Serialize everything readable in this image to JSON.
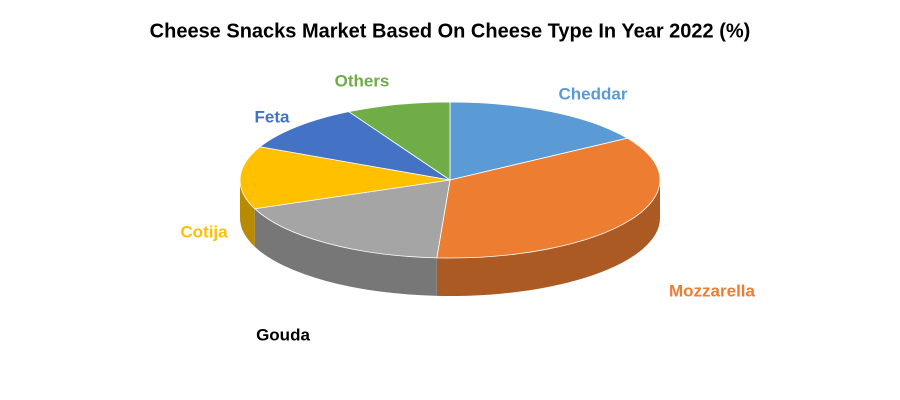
{
  "chart_data": {
    "type": "pie3d",
    "title": "Cheese Snacks Market Based On Cheese Type In Year 2022 (%)",
    "categories": [
      "Cheddar",
      "Mozzarella",
      "Gouda",
      "Cotija",
      "Feta",
      "Others"
    ],
    "values": [
      16,
      35,
      18,
      13,
      10,
      8
    ],
    "colors": [
      "#5b9bd5",
      "#ed7d31",
      "#a5a5a5",
      "#ffc000",
      "#4472c4",
      "#70ad47"
    ]
  }
}
